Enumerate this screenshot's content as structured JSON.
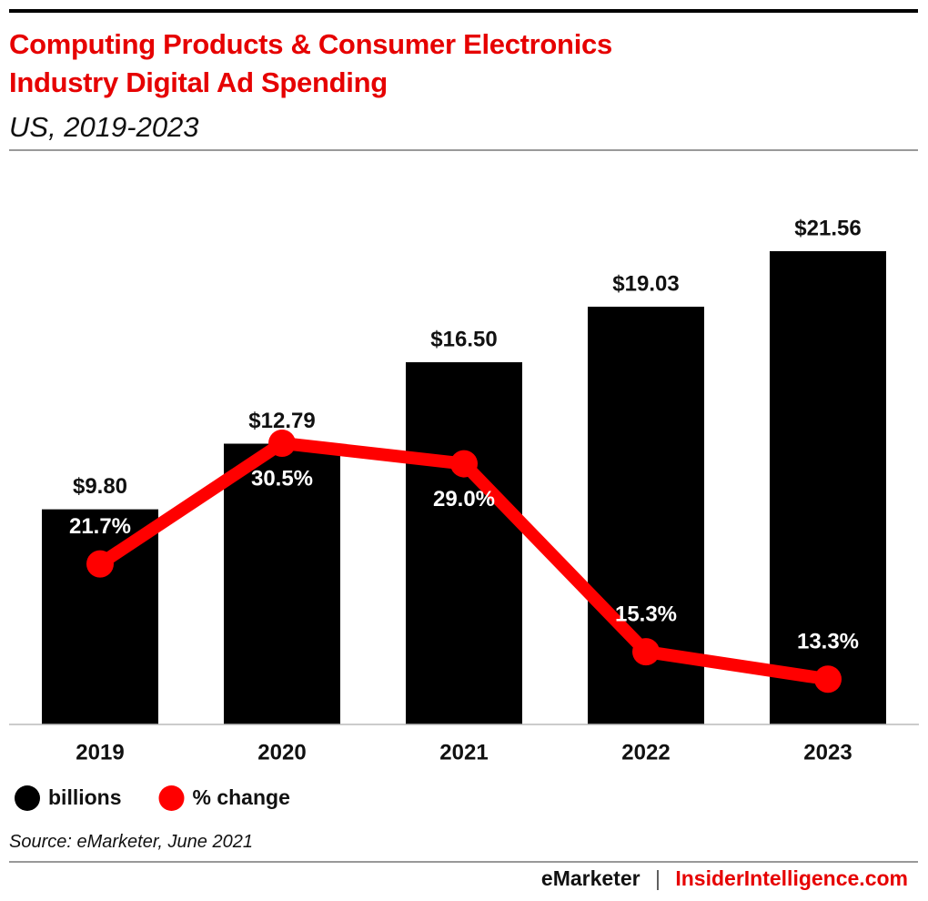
{
  "chart_data": {
    "type": "combo",
    "title": "Computing Products & Consumer Electronics Industry Digital Ad Spending",
    "subtitle": "US, 2019-2023",
    "categories": [
      "2019",
      "2020",
      "2021",
      "2022",
      "2023"
    ],
    "series": [
      {
        "name": "billions",
        "type": "bar",
        "color": "#000000",
        "values": [
          9.8,
          12.79,
          16.5,
          19.03,
          21.56
        ],
        "value_labels": [
          "$9.80",
          "$12.79",
          "$16.50",
          "$19.03",
          "$21.56"
        ]
      },
      {
        "name": "% change",
        "type": "line",
        "axis": "y2",
        "color": "#ff0000",
        "values": [
          21.7,
          30.5,
          29.0,
          15.3,
          13.3
        ],
        "value_labels": [
          "21.7%",
          "30.5%",
          "29.0%",
          "15.3%",
          "13.3%"
        ]
      }
    ],
    "ylim": [
      0,
      25
    ],
    "y2lim": [
      10,
      50
    ],
    "source": "Source: eMarketer, June 2021",
    "footer": {
      "brand": "eMarketer",
      "separator": "|",
      "site": "InsiderIntelligence.com"
    }
  }
}
